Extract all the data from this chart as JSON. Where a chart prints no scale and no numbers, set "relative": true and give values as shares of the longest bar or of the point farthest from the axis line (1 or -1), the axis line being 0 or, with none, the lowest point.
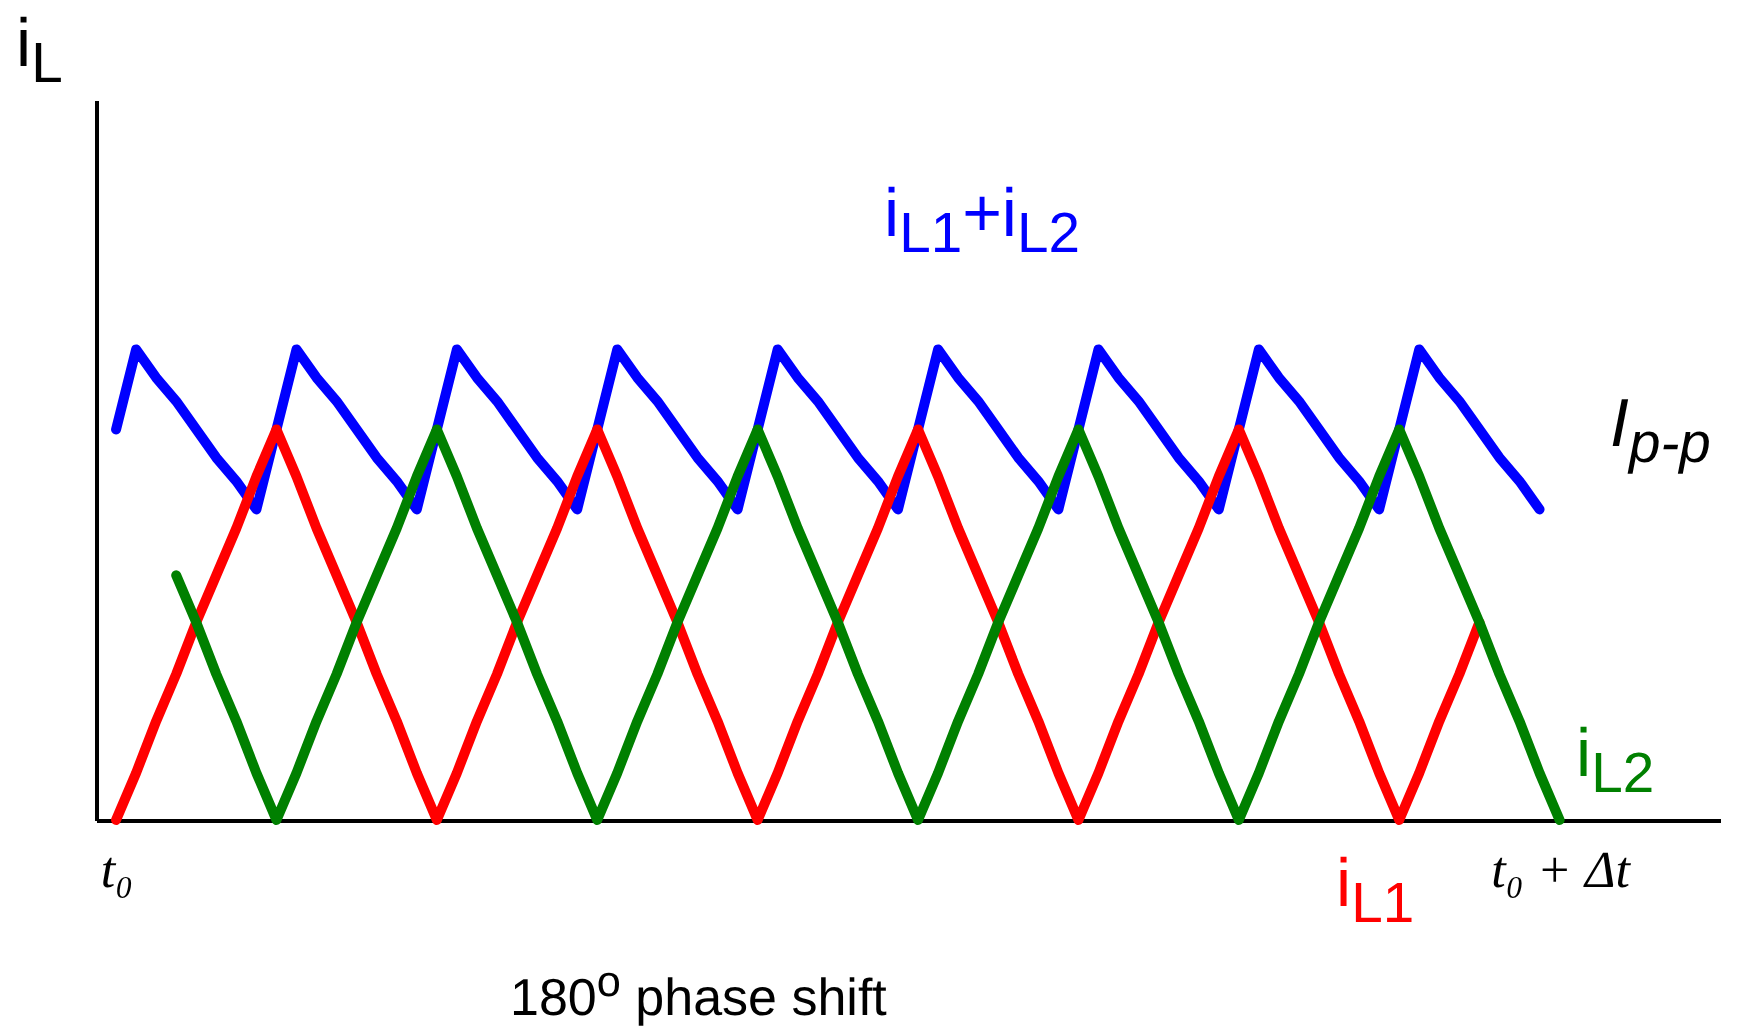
{
  "chart_data": {
    "type": "line",
    "relative": true,
    "ylabel": "i$_{L}$",
    "categories": [
      "t₀",
      null,
      null,
      null,
      null,
      null,
      null,
      null,
      null,
      null,
      null,
      null,
      null,
      null,
      null,
      null,
      null,
      null,
      null,
      null,
      null,
      null,
      null,
      null,
      null,
      null,
      null,
      null,
      null,
      null,
      null,
      null,
      null,
      null,
      null,
      null,
      null,
      null,
      null,
      null,
      null,
      null,
      null,
      null,
      null,
      null,
      null,
      null,
      null,
      null,
      null,
      null,
      null,
      null,
      null,
      null,
      null,
      null,
      null,
      null,
      null,
      null,
      null,
      null,
      null,
      null,
      null,
      null,
      null,
      null,
      null,
      null,
      "t₀ + Δt",
      null,
      null,
      null,
      null,
      null,
      null,
      null
    ],
    "legend": false,
    "grid": false,
    "marker": "none",
    "line_style": "solid",
    "series": [
      {
        "name": "i$_{L1}$+i$_{L2}$",
        "color": "#0000ff",
        "values": [
          0.83,
          1,
          0.94,
          0.89,
          0.83,
          0.77,
          0.72,
          0.66,
          0.83,
          1,
          0.94,
          0.89,
          0.83,
          0.77,
          0.72,
          0.66,
          0.83,
          1,
          0.94,
          0.89,
          0.83,
          0.77,
          0.72,
          0.66,
          0.83,
          1,
          0.94,
          0.89,
          0.83,
          0.77,
          0.72,
          0.66,
          0.83,
          1,
          0.94,
          0.89,
          0.83,
          0.77,
          0.72,
          0.66,
          0.83,
          1,
          0.94,
          0.89,
          0.83,
          0.77,
          0.72,
          0.66,
          0.83,
          1,
          0.94,
          0.89,
          0.83,
          0.77,
          0.72,
          0.66,
          0.83,
          1,
          0.94,
          0.89,
          0.83,
          0.77,
          0.72,
          0.66,
          0.83,
          1,
          0.94,
          0.89,
          0.83,
          0.77,
          0.72,
          0.66,
          null,
          null,
          null,
          null,
          null,
          null,
          null,
          null
        ]
      },
      {
        "name": "i$_{L1}$",
        "color": "#ff0000",
        "values": [
          0,
          0.1,
          0.21,
          0.31,
          0.42,
          0.52,
          0.62,
          0.73,
          0.83,
          0.73,
          0.62,
          0.52,
          0.42,
          0.31,
          0.21,
          0.1,
          0,
          0.1,
          0.21,
          0.31,
          0.42,
          0.52,
          0.62,
          0.73,
          0.83,
          0.73,
          0.62,
          0.52,
          0.42,
          0.31,
          0.21,
          0.1,
          0,
          0.1,
          0.21,
          0.31,
          0.42,
          0.52,
          0.62,
          0.73,
          0.83,
          0.73,
          0.62,
          0.52,
          0.42,
          0.31,
          0.21,
          0.1,
          0,
          0.1,
          0.21,
          0.31,
          0.42,
          0.52,
          0.62,
          0.73,
          0.83,
          0.73,
          0.62,
          0.52,
          0.42,
          0.31,
          0.21,
          0.1,
          0,
          0.1,
          0.21,
          0.31,
          0.42,
          null,
          null,
          null,
          null,
          null,
          null,
          null,
          null,
          null,
          null,
          null
        ]
      },
      {
        "name": "i$_{L2}$",
        "color": "#008000",
        "values": [
          null,
          null,
          null,
          0.52,
          0.42,
          0.31,
          0.21,
          0.1,
          0,
          0.1,
          0.21,
          0.31,
          0.42,
          0.52,
          0.62,
          0.73,
          0.83,
          0.73,
          0.62,
          0.52,
          0.42,
          0.31,
          0.21,
          0.1,
          0,
          0.1,
          0.21,
          0.31,
          0.42,
          0.52,
          0.62,
          0.73,
          0.83,
          0.73,
          0.62,
          0.52,
          0.42,
          0.31,
          0.21,
          0.1,
          0,
          0.1,
          0.21,
          0.31,
          0.42,
          0.52,
          0.62,
          0.73,
          0.83,
          0.73,
          0.62,
          0.52,
          0.42,
          0.31,
          0.21,
          0.1,
          0,
          0.1,
          0.21,
          0.31,
          0.42,
          0.52,
          0.62,
          0.73,
          0.83,
          0.73,
          0.62,
          0.52,
          0.42,
          0.31,
          0.21,
          0.1,
          0,
          null,
          null,
          null,
          null,
          null,
          null,
          null
        ]
      }
    ],
    "annotations": [
      "180$^{o}$ phase shift",
      "I$_{p-p}$"
    ]
  }
}
